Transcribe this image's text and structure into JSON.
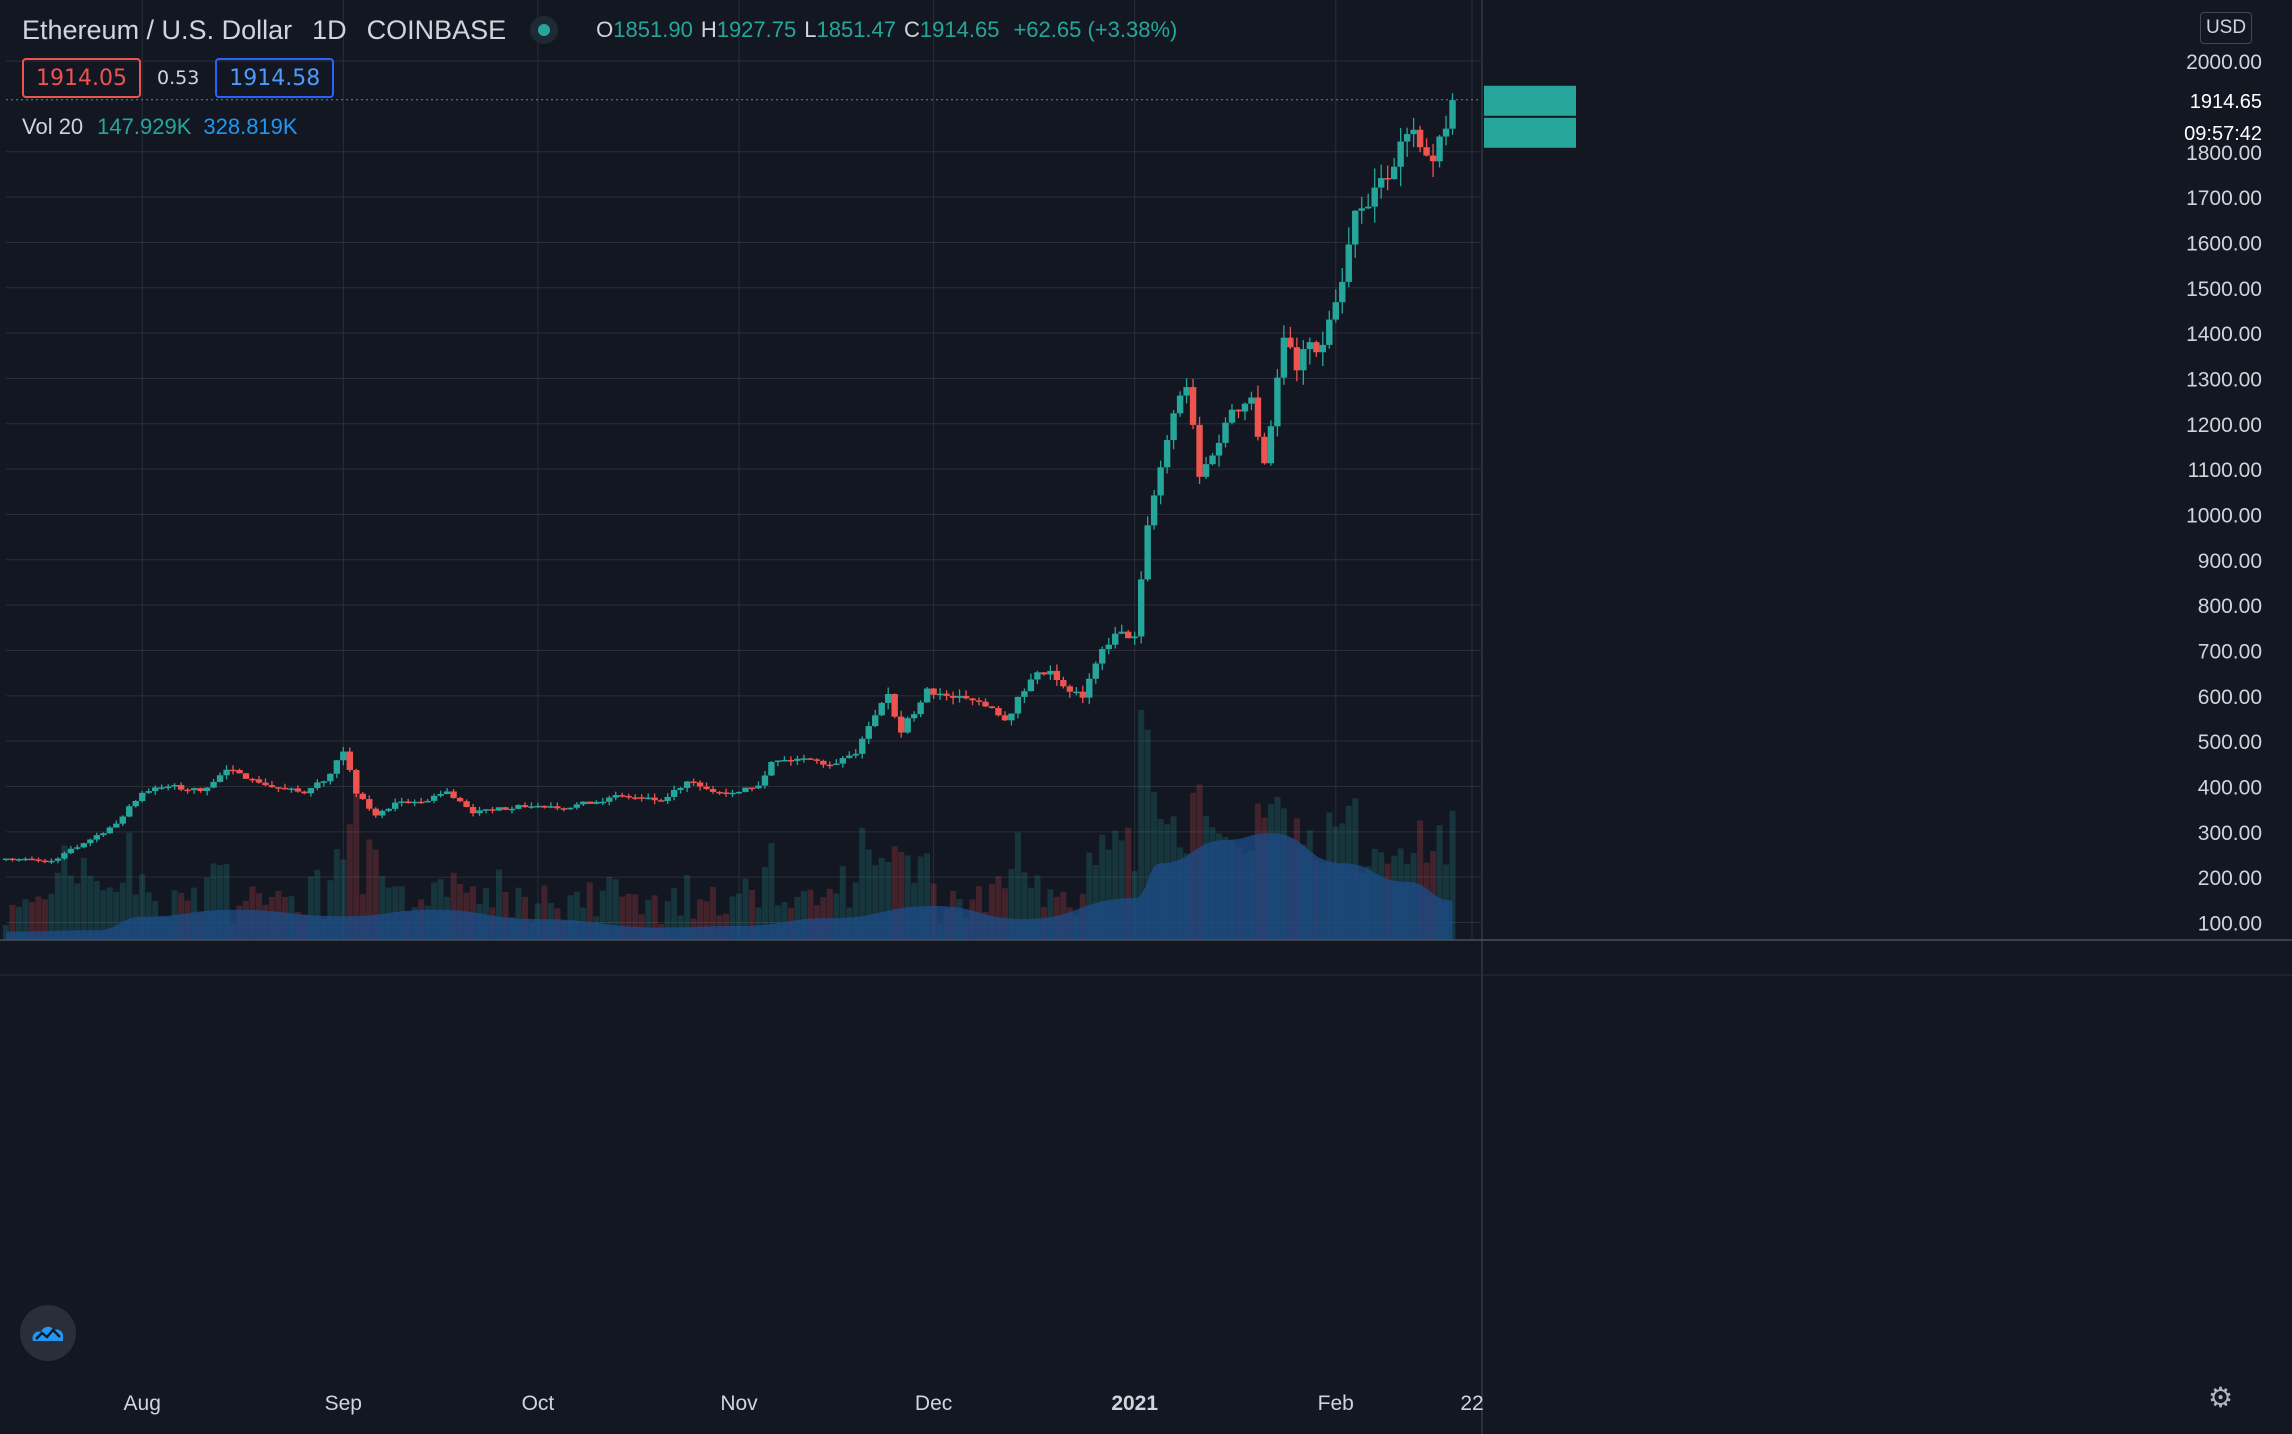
{
  "header": {
    "symbol": "Ethereum / U.S. Dollar",
    "interval": "1D",
    "exchange": "COINBASE",
    "open_label": "O",
    "open": "1851.90",
    "high_label": "H",
    "high": "1927.75",
    "low_label": "L",
    "low": "1851.47",
    "close_label": "C",
    "close": "1914.65",
    "change": "+62.65 (+3.38%)"
  },
  "quote": {
    "bid": "1914.05",
    "spread": "0.53",
    "ask": "1914.58"
  },
  "volume_legend": {
    "label": "Vol 20",
    "volume": "147.929K",
    "ma": "328.819K"
  },
  "price_scale": {
    "currency_button": "USD",
    "last_price": "1914.65",
    "countdown": "09:57:42"
  },
  "colors": {
    "background": "#131722",
    "up": "#26a69a",
    "down": "#ef5350",
    "volume_ma_fill": "#1d4e89",
    "grid": "#2a2e39",
    "text": "#d1d4dc"
  },
  "icons": {
    "logo": "tradingview-cloud-icon",
    "settings": "gear-icon"
  },
  "chart_data": {
    "type": "candlestick",
    "title": "Ethereum / U.S. Dollar",
    "x_ticks": [
      "Aug",
      "Sep",
      "Oct",
      "Nov",
      "Dec",
      "2021",
      "Feb",
      "22"
    ],
    "x_tick_dates": [
      "2020-08-01",
      "2020-09-01",
      "2020-10-01",
      "2020-11-01",
      "2020-12-01",
      "2021-01-01",
      "2021-02-01",
      "2021-02-22"
    ],
    "y_ticks": [
      100,
      200,
      300,
      400,
      500,
      600,
      700,
      800,
      900,
      1000,
      1100,
      1200,
      1300,
      1400,
      1500,
      1600,
      1700,
      1800,
      2000
    ],
    "ylim": [
      57,
      2096
    ],
    "xlim": [
      "2020-07-11",
      "2021-02-22"
    ],
    "grid": true,
    "volume_pane": true,
    "series": [
      {
        "name": "ETHUSD",
        "sampled_daily_closes": [
          [
            "2020-07-11",
            241
          ],
          [
            "2020-07-18",
            236
          ],
          [
            "2020-07-23",
            275
          ],
          [
            "2020-07-28",
            318
          ],
          [
            "2020-08-01",
            386
          ],
          [
            "2020-08-05",
            400
          ],
          [
            "2020-08-10",
            390
          ],
          [
            "2020-08-14",
            437
          ],
          [
            "2020-08-20",
            403
          ],
          [
            "2020-08-26",
            385
          ],
          [
            "2020-08-30",
            428
          ],
          [
            "2020-09-01",
            477
          ],
          [
            "2020-09-03",
            384
          ],
          [
            "2020-09-06",
            336
          ],
          [
            "2020-09-10",
            367
          ],
          [
            "2020-09-13",
            366
          ],
          [
            "2020-09-17",
            389
          ],
          [
            "2020-09-21",
            341
          ],
          [
            "2020-09-24",
            347
          ],
          [
            "2020-09-28",
            359
          ],
          [
            "2020-10-04",
            352
          ],
          [
            "2020-10-10",
            366
          ],
          [
            "2020-10-14",
            379
          ],
          [
            "2020-10-20",
            368
          ],
          [
            "2020-10-24",
            411
          ],
          [
            "2020-10-28",
            388
          ],
          [
            "2020-11-01",
            388
          ],
          [
            "2020-11-04",
            402
          ],
          [
            "2020-11-06",
            454
          ],
          [
            "2020-11-11",
            462
          ],
          [
            "2020-11-15",
            448
          ],
          [
            "2020-11-19",
            472
          ],
          [
            "2020-11-22",
            557
          ],
          [
            "2020-11-24",
            604
          ],
          [
            "2020-11-26",
            519
          ],
          [
            "2020-11-30",
            616
          ],
          [
            "2020-12-03",
            600
          ],
          [
            "2020-12-07",
            590
          ],
          [
            "2020-12-10",
            573
          ],
          [
            "2020-12-12",
            546
          ],
          [
            "2020-12-16",
            636
          ],
          [
            "2020-12-19",
            655
          ],
          [
            "2020-12-22",
            609
          ],
          [
            "2020-12-24",
            596
          ],
          [
            "2020-12-27",
            703
          ],
          [
            "2020-12-29",
            737
          ],
          [
            "2021-01-01",
            731
          ],
          [
            "2021-01-03",
            976
          ],
          [
            "2021-01-05",
            1104
          ],
          [
            "2021-01-07",
            1223
          ],
          [
            "2021-01-09",
            1281
          ],
          [
            "2021-01-11",
            1083
          ],
          [
            "2021-01-13",
            1130
          ],
          [
            "2021-01-16",
            1231
          ],
          [
            "2021-01-19",
            1258
          ],
          [
            "2021-01-21",
            1113
          ],
          [
            "2021-01-24",
            1390
          ],
          [
            "2021-01-26",
            1318
          ],
          [
            "2021-01-28",
            1380
          ],
          [
            "2021-01-30",
            1374
          ],
          [
            "2021-02-02",
            1513
          ],
          [
            "2021-02-04",
            1670
          ],
          [
            "2021-02-06",
            1679
          ],
          [
            "2021-02-08",
            1742
          ],
          [
            "2021-02-10",
            1767
          ],
          [
            "2021-02-12",
            1839
          ],
          [
            "2021-02-14",
            1810
          ],
          [
            "2021-02-16",
            1779
          ],
          [
            "2021-02-18",
            1851
          ],
          [
            "2021-02-19",
            1914
          ]
        ]
      }
    ],
    "volume_ma_sampled": [
      [
        "2020-07-11",
        93
      ],
      [
        "2020-07-25",
        96
      ],
      [
        "2020-08-01",
        125
      ],
      [
        "2020-08-15",
        140
      ],
      [
        "2020-09-01",
        126
      ],
      [
        "2020-09-15",
        140
      ],
      [
        "2020-10-01",
        120
      ],
      [
        "2020-10-20",
        102
      ],
      [
        "2020-11-01",
        105
      ],
      [
        "2020-11-15",
        122
      ],
      [
        "2020-12-01",
        148
      ],
      [
        "2020-12-15",
        120
      ],
      [
        "2021-01-01",
        165
      ],
      [
        "2021-01-05",
        240
      ],
      [
        "2021-01-15",
        290
      ],
      [
        "2021-01-22",
        305
      ],
      [
        "2021-02-02",
        240
      ],
      [
        "2021-02-12",
        200
      ],
      [
        "2021-02-19",
        160
      ]
    ]
  }
}
